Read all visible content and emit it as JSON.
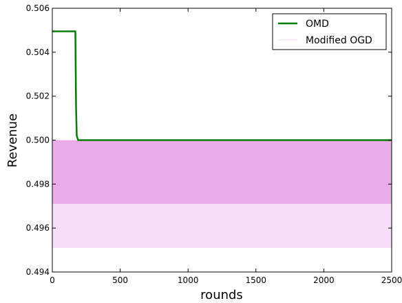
{
  "chart_data": {
    "type": "line",
    "title": "",
    "xlabel": "rounds",
    "ylabel": "Revenue",
    "xlim": [
      0,
      2500
    ],
    "ylim": [
      0.494,
      0.506
    ],
    "x_ticks": [
      0,
      500,
      1000,
      1500,
      2000,
      2500
    ],
    "x_tick_labels": [
      "0",
      "500",
      "1000",
      "1500",
      "2000",
      "2500"
    ],
    "y_ticks": [
      0.494,
      0.496,
      0.498,
      0.5,
      0.502,
      0.504,
      0.506
    ],
    "y_tick_labels": [
      "0.494",
      "0.496",
      "0.498",
      "0.500",
      "0.502",
      "0.504",
      "0.506"
    ],
    "grid": false,
    "legend_position": "top-right",
    "series": [
      {
        "name": "OMD",
        "color": "#007f00",
        "x": [
          0,
          170,
          175,
          180,
          190,
          2500
        ],
        "y": [
          0.50495,
          0.50495,
          0.5015,
          0.5002,
          0.5,
          0.5
        ]
      },
      {
        "name": "Modified OGD",
        "color": "#dd77dd",
        "oscillation": {
          "x_range": [
            0,
            2500
          ],
          "upper": 0.5,
          "dense_lower": 0.4971,
          "sparse_lower": 0.4951
        }
      }
    ]
  }
}
